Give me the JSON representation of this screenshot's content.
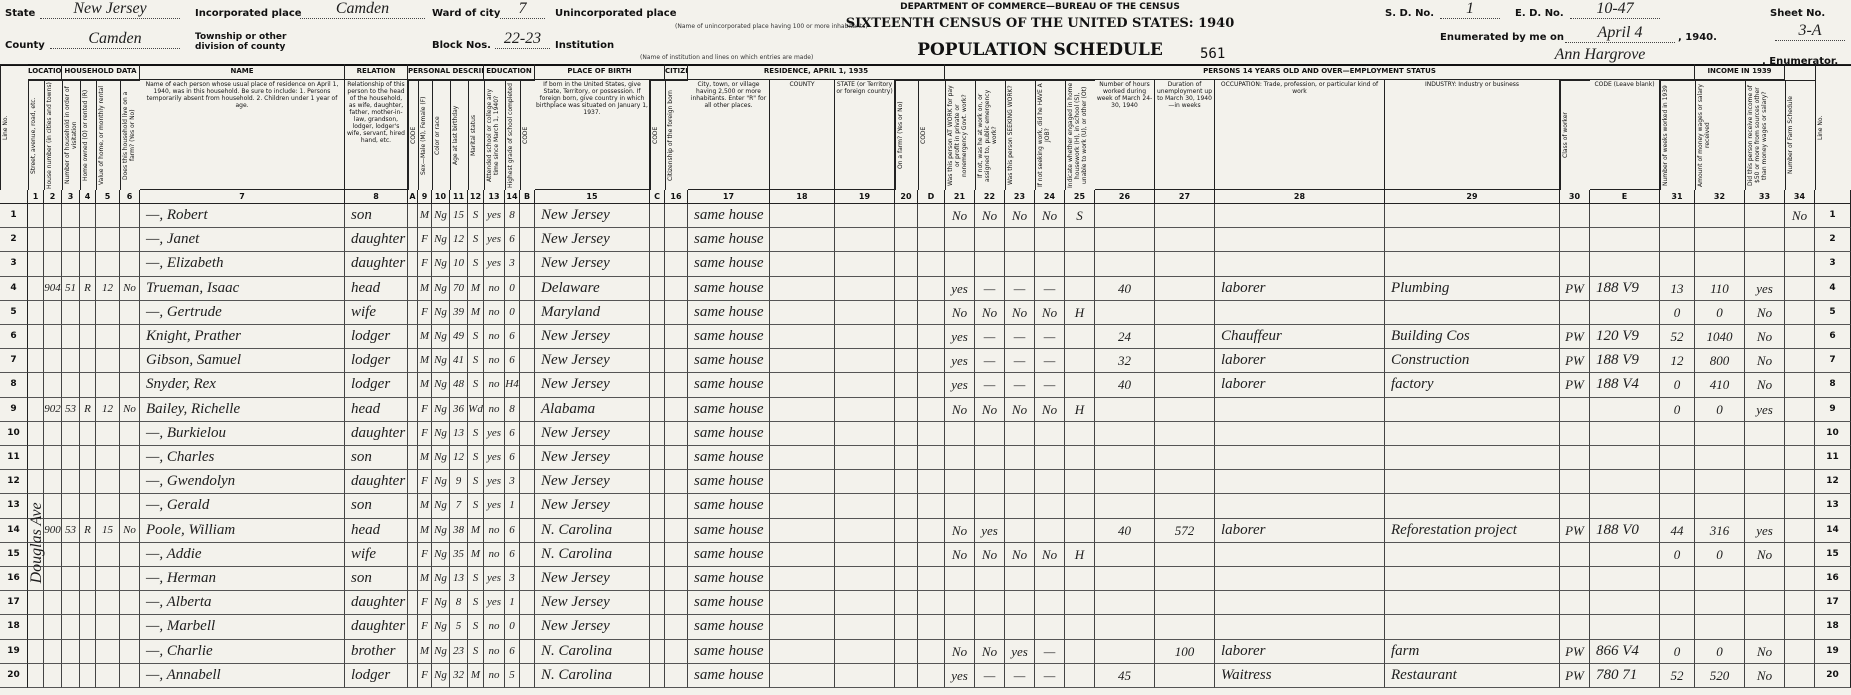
{
  "header": {
    "state_label": "State",
    "state": "New Jersey",
    "county_label": "County",
    "county": "Camden",
    "incorporated_label": "Incorporated place",
    "incorporated": "Camden",
    "township_label": "Township or other division of county",
    "ward_label": "Ward of city",
    "ward": "7",
    "block_label": "Block Nos.",
    "block": "22-23",
    "unincorporated_label": "Unincorporated place",
    "unincorporated_note": "(Name of unincorporated place having 100 or more inhabitants)",
    "institution_label": "Institution",
    "institution_note": "(Name of institution and lines on which entries are made)",
    "department": "DEPARTMENT OF COMMERCE—BUREAU OF THE CENSUS",
    "title": "SIXTEENTH CENSUS OF THE UNITED STATES: 1940",
    "subtitle": "POPULATION SCHEDULE",
    "stamp": "561",
    "sd_label": "S. D. No.",
    "sd": "1",
    "ed_label": "E. D. No.",
    "ed": "10-47",
    "sheet_label": "Sheet No.",
    "sheet": "3-A",
    "enumerated_label": "Enumerated by me on",
    "enumerated_date": "April 4",
    "enumerated_year": ", 1940.",
    "enumerator": "Ann Hargrove",
    "enumerator_label": ", Enumerator."
  },
  "table": {
    "line_label": "Line No.",
    "street": "Douglas Ave",
    "groups": [
      "LOCATION",
      "HOUSEHOLD DATA",
      "NAME",
      "RELATION",
      "PERSONAL DESCRIPTION",
      "EDUCATION",
      "PLACE OF BIRTH",
      "CITIZENSHIP",
      "RESIDENCE, APRIL 1, 1935",
      "PERSONS 14 YEARS OLD AND OVER—EMPLOYMENT STATUS",
      "INCOME IN 1939"
    ],
    "columns": [
      {
        "number": "1",
        "title": "Street, avenue, road, etc."
      },
      {
        "number": "2",
        "title": "House number (in cities and towns)"
      },
      {
        "number": "3",
        "title": "Number of household in order of visitation"
      },
      {
        "number": "4",
        "title": "Home owned (O) or rented (R)"
      },
      {
        "number": "5",
        "title": "Value of home, or monthly rental"
      },
      {
        "number": "6",
        "title": "Does this household live on a farm? (Yes or No)"
      },
      {
        "number": "7",
        "title": "Name of each person whose usual place of residence on April 1, 1940, was in this household. Be sure to include: 1. Persons temporarily absent from household. 2. Children under 1 year of age."
      },
      {
        "number": "8",
        "title": "Relationship of this person to the head of the household, as wife, daughter, father, mother-in-law, grandson, lodger, lodger's wife, servant, hired hand, etc."
      },
      {
        "number": "A",
        "title": "CODE"
      },
      {
        "number": "9",
        "title": "Sex—Male (M), Female (F)"
      },
      {
        "number": "10",
        "title": "Color or race"
      },
      {
        "number": "11",
        "title": "Age at last birthday"
      },
      {
        "number": "12",
        "title": "Marital status"
      },
      {
        "number": "13",
        "title": "Attended school or college any time since March 1, 1940?"
      },
      {
        "number": "14",
        "title": "Highest grade of school completed"
      },
      {
        "number": "B",
        "title": "CODE"
      },
      {
        "number": "15",
        "title": "If born in the United States, give State, Territory, or possession. If foreign born, give country in which birthplace was situated on January 1, 1937."
      },
      {
        "number": "C",
        "title": "CODE"
      },
      {
        "number": "16",
        "title": "Citizenship of the foreign born"
      },
      {
        "number": "17",
        "title": "City, town, or village having 2,500 or more inhabitants. Enter \"R\" for all other places."
      },
      {
        "number": "18",
        "title": "COUNTY"
      },
      {
        "number": "19",
        "title": "STATE (or Territory or foreign country)"
      },
      {
        "number": "20",
        "title": "On a farm? (Yes or No)"
      },
      {
        "number": "D",
        "title": "CODE"
      },
      {
        "number": "21",
        "title": "Was this person AT WORK for pay or profit in private or nonemergency Govt. work?"
      },
      {
        "number": "22",
        "title": "If not, was he at work on, or assigned to, public emergency work?"
      },
      {
        "number": "23",
        "title": "Was this person SEEKING WORK?"
      },
      {
        "number": "24",
        "title": "If not seeking work, did he HAVE A JOB?"
      },
      {
        "number": "25",
        "title": "Indicate whether engaged in home housework (H), in school (S), unable to work (U), or other (Ot)"
      },
      {
        "number": "26",
        "title": "Number of hours worked during week of March 24-30, 1940"
      },
      {
        "number": "27",
        "title": "Duration of unemployment up to March 30, 1940—in weeks"
      },
      {
        "number": "28",
        "title": "OCCUPATION: Trade, profession, or particular kind of work"
      },
      {
        "number": "29",
        "title": "INDUSTRY: Industry or business"
      },
      {
        "number": "30",
        "title": "Class of worker"
      },
      {
        "number": "E",
        "title": "CODE (Leave blank)"
      },
      {
        "number": "31",
        "title": "Number of weeks worked in 1939"
      },
      {
        "number": "32",
        "title": "Amount of money wages or salary received"
      },
      {
        "number": "33",
        "title": "Did this person receive income of $50 or more from sources other than money wages or salary?"
      },
      {
        "number": "34",
        "title": "Number of Farm Schedule"
      }
    ],
    "rows": [
      {
        "7": "—, Robert",
        "8": "son",
        "9": "M",
        "10": "Ng",
        "11": 15,
        "12": "S",
        "13": "yes",
        "14": 8,
        "15": "New Jersey",
        "17": "same house",
        "21": "No",
        "22": "No",
        "23": "No",
        "24": "No",
        "25": "S",
        "34": "No"
      },
      {
        "7": "—, Janet",
        "8": "daughter",
        "9": "F",
        "10": "Ng",
        "11": 12,
        "12": "S",
        "13": "yes",
        "14": 6,
        "15": "New Jersey",
        "17": "same house"
      },
      {
        "7": "—, Elizabeth",
        "8": "daughter",
        "9": "F",
        "10": "Ng",
        "11": 10,
        "12": "S",
        "13": "yes",
        "14": 3,
        "15": "New Jersey",
        "17": "same house"
      },
      {
        "2": 904,
        "3": 51,
        "4": "R",
        "5": 12,
        "6": "No",
        "7": "Trueman, Isaac",
        "8": "head",
        "9": "M",
        "10": "Ng",
        "11": 70,
        "12": "M",
        "13": "no",
        "14": 0,
        "15": "Delaware",
        "17": "same house",
        "21": "yes",
        "22": "—",
        "23": "—",
        "24": "—",
        "26": 40,
        "28": "laborer",
        "29": "Plumbing",
        "30": "PW",
        "E": "188 V9",
        "31": 13,
        "32": 110,
        "33": "yes"
      },
      {
        "7": "—, Gertrude",
        "8": "wife",
        "9": "F",
        "10": "Ng",
        "11": 39,
        "12": "M",
        "13": "no",
        "14": 0,
        "15": "Maryland",
        "17": "same house",
        "21": "No",
        "22": "No",
        "23": "No",
        "24": "No",
        "25": "H",
        "31": 0,
        "32": 0,
        "33": "No"
      },
      {
        "7": "Knight, Prather",
        "8": "lodger",
        "9": "M",
        "10": "Ng",
        "11": 49,
        "12": "S",
        "13": "no",
        "14": 6,
        "15": "New Jersey",
        "17": "same house",
        "21": "yes",
        "22": "—",
        "23": "—",
        "24": "—",
        "26": 24,
        "28": "Chauffeur",
        "29": "Building Cos",
        "30": "PW",
        "E": "120 V9",
        "31": 52,
        "32": 1040,
        "33": "No"
      },
      {
        "7": "Gibson, Samuel",
        "8": "lodger",
        "9": "M",
        "10": "Ng",
        "11": 41,
        "12": "S",
        "13": "no",
        "14": 6,
        "15": "New Jersey",
        "17": "same house",
        "21": "yes",
        "22": "—",
        "23": "—",
        "24": "—",
        "26": 32,
        "28": "laborer",
        "29": "Construction",
        "30": "PW",
        "E": "188 V9",
        "31": 12,
        "32": 800,
        "33": "No"
      },
      {
        "7": "Snyder, Rex",
        "8": "lodger",
        "9": "M",
        "10": "Ng",
        "11": 48,
        "12": "S",
        "13": "no",
        "14": "H4",
        "15": "New Jersey",
        "17": "same house",
        "21": "yes",
        "22": "—",
        "23": "—",
        "24": "—",
        "26": 40,
        "28": "laborer",
        "29": "factory",
        "30": "PW",
        "E": "188 V4",
        "31": 0,
        "32": 410,
        "33": "No"
      },
      {
        "2": 902,
        "3": 53,
        "4": "R",
        "5": 12,
        "6": "No",
        "7": "Bailey, Richelle",
        "8": "head",
        "9": "F",
        "10": "Ng",
        "11": 36,
        "12": "Wd",
        "13": "no",
        "14": 8,
        "15": "Alabama",
        "17": "same house",
        "21": "No",
        "22": "No",
        "23": "No",
        "24": "No",
        "25": "H",
        "31": 0,
        "32": 0,
        "33": "yes"
      },
      {
        "7": "—, Burkielou",
        "8": "daughter",
        "9": "F",
        "10": "Ng",
        "11": 13,
        "12": "S",
        "13": "yes",
        "14": 6,
        "15": "New Jersey",
        "17": "same house"
      },
      {
        "7": "—, Charles",
        "8": "son",
        "9": "M",
        "10": "Ng",
        "11": 12,
        "12": "S",
        "13": "yes",
        "14": 6,
        "15": "New Jersey",
        "17": "same house"
      },
      {
        "7": "—, Gwendolyn",
        "8": "daughter",
        "9": "F",
        "10": "Ng",
        "11": 9,
        "12": "S",
        "13": "yes",
        "14": 3,
        "15": "New Jersey",
        "17": "same house"
      },
      {
        "7": "—, Gerald",
        "8": "son",
        "9": "M",
        "10": "Ng",
        "11": 7,
        "12": "S",
        "13": "yes",
        "14": 1,
        "15": "New Jersey",
        "17": "same house"
      },
      {
        "2": 900,
        "3": 53,
        "4": "R",
        "5": 15,
        "6": "No",
        "7": "Poole, William",
        "8": "head",
        "9": "M",
        "10": "Ng",
        "11": 38,
        "12": "M",
        "13": "no",
        "14": 6,
        "15": "N. Carolina",
        "17": "same house",
        "21": "No",
        "22": "yes",
        "26": 40,
        "27": 572,
        "28": "laborer",
        "29": "Reforestation project",
        "30": "PW",
        "E": "188 V0",
        "31": 44,
        "32": 316,
        "33": "yes"
      },
      {
        "7": "—, Addie",
        "8": "wife",
        "9": "F",
        "10": "Ng",
        "11": 35,
        "12": "M",
        "13": "no",
        "14": 6,
        "15": "N. Carolina",
        "17": "same house",
        "21": "No",
        "22": "No",
        "23": "No",
        "24": "No",
        "25": "H",
        "31": 0,
        "32": 0,
        "33": "No"
      },
      {
        "7": "—, Herman",
        "8": "son",
        "9": "M",
        "10": "Ng",
        "11": 13,
        "12": "S",
        "13": "yes",
        "14": 3,
        "15": "New Jersey",
        "17": "same house"
      },
      {
        "7": "—, Alberta",
        "8": "daughter",
        "9": "F",
        "10": "Ng",
        "11": 8,
        "12": "S",
        "13": "yes",
        "14": 1,
        "15": "New Jersey",
        "17": "same house"
      },
      {
        "7": "—, Marbell",
        "8": "daughter",
        "9": "F",
        "10": "Ng",
        "11": 5,
        "12": "S",
        "13": "no",
        "14": 0,
        "15": "New Jersey",
        "17": "same house"
      },
      {
        "7": "—, Charlie",
        "8": "brother",
        "9": "M",
        "10": "Ng",
        "11": 23,
        "12": "S",
        "13": "no",
        "14": 6,
        "15": "N. Carolina",
        "17": "same house",
        "21": "No",
        "22": "No",
        "23": "yes",
        "24": "—",
        "27": 100,
        "28": "laborer",
        "29": "farm",
        "30": "PW",
        "E": "866 V4",
        "31": 0,
        "32": 0,
        "33": "No"
      },
      {
        "7": "—, Annabell",
        "8": "lodger",
        "9": "F",
        "10": "Ng",
        "11": 32,
        "12": "M",
        "13": "no",
        "14": 5,
        "15": "N. Carolina",
        "17": "same house",
        "21": "yes",
        "22": "—",
        "23": "—",
        "24": "—",
        "26": 45,
        "28": "Waitress",
        "29": "Restaurant",
        "30": "PW",
        "E": "780 71",
        "31": 52,
        "32": 520,
        "33": "No"
      }
    ]
  },
  "line_numbers": [
    1,
    2,
    3,
    4,
    5,
    6,
    7,
    8,
    9,
    10,
    11,
    12,
    13,
    14,
    15,
    16,
    17,
    18,
    19,
    20
  ]
}
